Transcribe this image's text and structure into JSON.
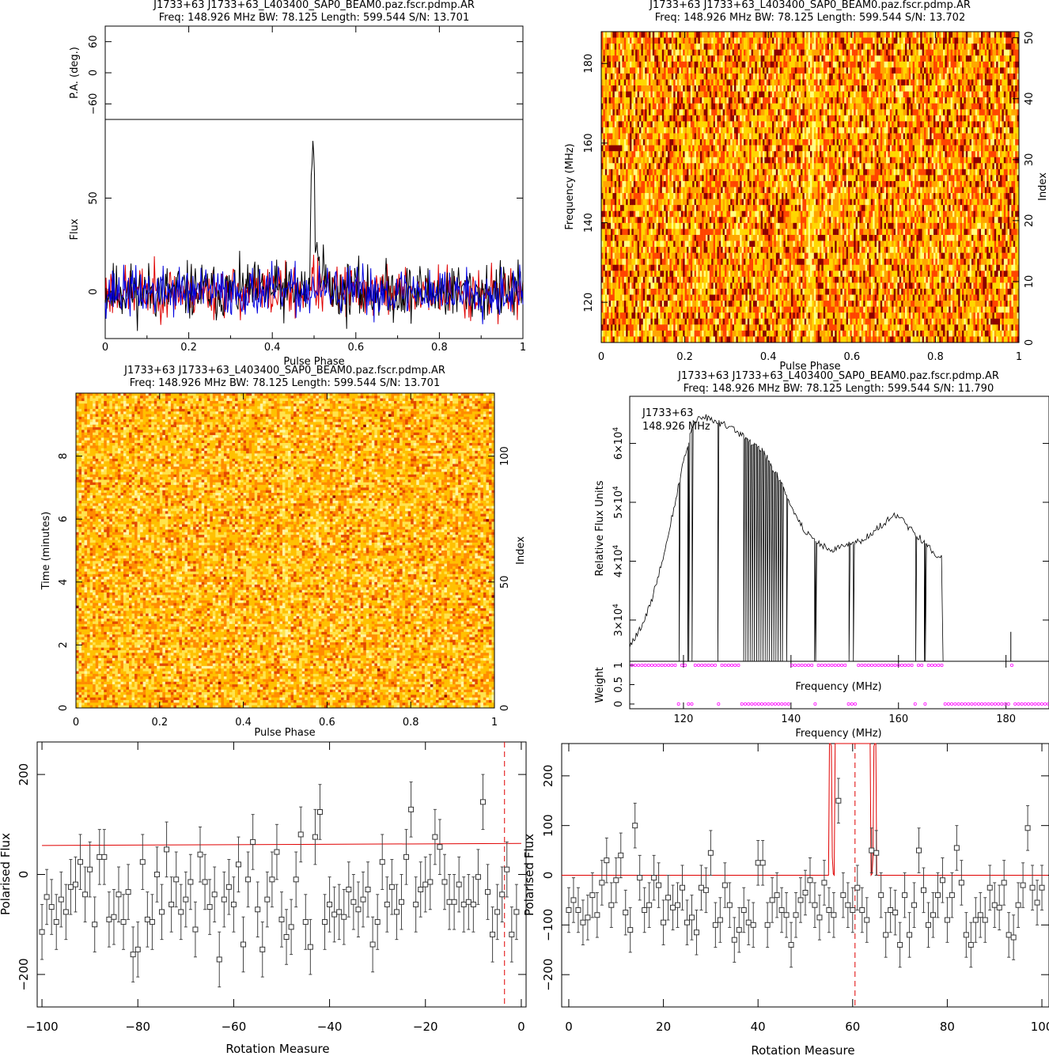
{
  "chart_data": [
    {
      "id": "profile",
      "type": "line",
      "title": "J1733+63 J1733+63_L403400_SAP0_BEAM0.paz.fscr.pdmp.AR",
      "subtitle": "Freq: 148.926 MHz BW: 78.125 Length: 599.544 S/N: 13.701",
      "xlabel": "Pulse Phase",
      "top_panel": {
        "ylabel": "P.A. (deg.)",
        "yticks": [
          "60",
          "0",
          "−60"
        ],
        "ylim": [
          -90,
          90
        ]
      },
      "ylabel": "Flux",
      "yticks": [
        "0",
        "50"
      ],
      "xlim": [
        0,
        1
      ],
      "ylim": [
        -25,
        92
      ],
      "xticks": [
        "0",
        "0.2",
        "0.4",
        "0.6",
        "0.8",
        "1"
      ],
      "series": [
        {
          "color": "#000000",
          "peak": {
            "x": 0.497,
            "y": 90
          }
        },
        {
          "color": "#e00000"
        },
        {
          "color": "#0000e0"
        }
      ]
    },
    {
      "id": "freq-phase",
      "type": "heatmap",
      "title": "J1733+63 J1733+63_L403400_SAP0_BEAM0.paz.fscr.pdmp.AR",
      "subtitle": "Freq: 148.926 MHz BW: 78.125 Length: 599.544 S/N: 13.702",
      "xlabel": "Pulse Phase",
      "ylabel": "Frequency (MHz)",
      "ylabel_right": "Index",
      "xlim": [
        0,
        1
      ],
      "ylim": [
        109.9,
        188.0
      ],
      "xticks": [
        "0",
        "0.2",
        "0.4",
        "0.6",
        "0.8",
        "1"
      ],
      "yticks": [
        "120",
        "140",
        "160",
        "180"
      ],
      "yticks_right": [
        "0",
        "10",
        "20",
        "30",
        "40",
        "50"
      ],
      "colormap": [
        "#8b0000",
        "#ff4500",
        "#ffa500",
        "#ffd700",
        "#ffff80"
      ]
    },
    {
      "id": "time-phase",
      "type": "heatmap",
      "title": "J1733+63 J1733+63_L403400_SAP0_BEAM0.paz.fscr.pdmp.AR",
      "subtitle": "Freq: 148.926 MHz BW: 78.125 Length: 599.544 S/N: 13.701",
      "xlabel": "Pulse Phase",
      "ylabel": "Time (minutes)",
      "ylabel_right": "Index",
      "xlim": [
        0,
        1
      ],
      "ylim": [
        0,
        10
      ],
      "xticks": [
        "0",
        "0.2",
        "0.4",
        "0.6",
        "0.8",
        "1"
      ],
      "yticks": [
        "0",
        "2",
        "4",
        "6",
        "8"
      ],
      "yticks_right": [
        "0",
        "50",
        "100"
      ]
    },
    {
      "id": "bandpass",
      "type": "line",
      "title": "J1733+63 J1733+63_L403400_SAP0_BEAM0.paz.fscr.pdmp.AR",
      "subtitle": "Freq: 148.926 MHz BW: 78.125 Length: 599.544 S/N: 11.790",
      "annotation": [
        "J1733+63",
        "148.926 MHz"
      ],
      "xlabel": "Frequency (MHz)",
      "ylabel": "Relative Flux Units",
      "yticks": [
        "3×10",
        "4×10",
        "5×10",
        "6×10"
      ],
      "ytick_exponent": "4",
      "xlim": [
        110,
        188
      ],
      "ylim": [
        23000,
        68000
      ],
      "xticks": [
        "120",
        "140",
        "160",
        "180"
      ],
      "envelope": [
        [
          110,
          25500
        ],
        [
          112,
          28500
        ],
        [
          114,
          33000
        ],
        [
          116,
          40000
        ],
        [
          118,
          48000
        ],
        [
          120,
          57000
        ],
        [
          122,
          64000
        ],
        [
          124,
          64500
        ],
        [
          126,
          63500
        ],
        [
          128,
          63000
        ],
        [
          130,
          62000
        ],
        [
          132,
          60500
        ],
        [
          134,
          59500
        ],
        [
          136,
          57000
        ],
        [
          138,
          53500
        ],
        [
          140,
          49500
        ],
        [
          142,
          46000
        ],
        [
          144,
          43500
        ],
        [
          146,
          42500
        ],
        [
          148,
          42000
        ],
        [
          150,
          42500
        ],
        [
          152,
          43000
        ],
        [
          154,
          44000
        ],
        [
          156,
          45500
        ],
        [
          158,
          47000
        ],
        [
          160,
          48000
        ],
        [
          162,
          45500
        ],
        [
          164,
          44000
        ],
        [
          166,
          42000
        ],
        [
          168,
          40500
        ]
      ],
      "flagged_channels": [
        119.2,
        120.9,
        121.6,
        126.4,
        131.2,
        131.6,
        132.0,
        132.4,
        132.8,
        133.2,
        133.6,
        134.0,
        134.4,
        134.8,
        135.2,
        135.6,
        136.0,
        136.4,
        136.8,
        137.2,
        137.6,
        138.0,
        138.4,
        139.2,
        144.5,
        150.8,
        151.6,
        163.2,
        164.9
      ],
      "spike": {
        "x": 180.9,
        "y": 28000
      },
      "weight_panel": {
        "ylabel": "Weight",
        "yticks": [
          "0",
          "0.5",
          "1"
        ],
        "inner_label": "Frequency (MHz)",
        "color": "#ff00ff"
      }
    },
    {
      "id": "rm-negative",
      "type": "scatter",
      "xlabel": "Rotation Measure",
      "ylabel": "Polarised Flux",
      "xlim": [
        -101,
        1
      ],
      "ylim": [
        -265,
        265
      ],
      "xticks": [
        "−100",
        "−80",
        "−60",
        "−40",
        "−20",
        "0"
      ],
      "yticks": [
        "−200",
        "0",
        "200"
      ],
      "x": [
        -100.0,
        -99.0,
        -98.0,
        -97.0,
        -96.0,
        -95.0,
        -94.0,
        -93.0,
        -92.0,
        -91.0,
        -90.0,
        -89.0,
        -88.0,
        -87.0,
        -86.0,
        -85.0,
        -84.0,
        -83.0,
        -82.0,
        -81.0,
        -80.0,
        -79.0,
        -78.0,
        -77.0,
        -76.0,
        -75.0,
        -74.0,
        -73.0,
        -72.0,
        -71.0,
        -70.0,
        -69.0,
        -68.0,
        -67.0,
        -66.0,
        -65.0,
        -64.0,
        -63.0,
        -62.0,
        -61.0,
        -60.0,
        -59.0,
        -58.0,
        -57.0,
        -56.0,
        -55.0,
        -54.0,
        -53.0,
        -52.0,
        -51.0,
        -50.0,
        -49.0,
        -48.0,
        -47.0,
        -46.0,
        -45.0,
        -44.0,
        -43.0,
        -42.0,
        -41.0,
        -40.0,
        -39.0,
        -38.0,
        -37.0,
        -36.0,
        -35.0,
        -34.0,
        -33.0,
        -32.0,
        -31.0,
        -30.0,
        -29.0,
        -28.0,
        -27.0,
        -26.0,
        -25.0,
        -24.0,
        -23.0,
        -22.0,
        -21.0,
        -20.0,
        -19.0,
        -18.0,
        -17.0,
        -16.0,
        -15.0,
        -14.0,
        -13.0,
        -12.0,
        -11.0,
        -10.0,
        -9.0,
        -8.0,
        -7.0,
        -6.0,
        -5.0,
        -4.0,
        -3.0,
        -2.0,
        -1.0
      ],
      "y": [
        -115,
        -45,
        -65,
        -95,
        -50,
        -75,
        -25,
        -20,
        25,
        -40,
        10,
        -100,
        35,
        35,
        -90,
        -85,
        -40,
        -95,
        -35,
        -160,
        -150,
        25,
        -90,
        -95,
        0,
        -75,
        50,
        -60,
        -10,
        -75,
        -50,
        -15,
        -110,
        40,
        -15,
        -65,
        -40,
        -170,
        -50,
        -25,
        -60,
        20,
        -140,
        -10,
        65,
        -70,
        -150,
        -50,
        -10,
        45,
        -90,
        -125,
        -105,
        -10,
        80,
        -95,
        -145,
        75,
        125,
        -95,
        -60,
        -80,
        -75,
        -85,
        -30,
        -55,
        -70,
        -50,
        -30,
        -140,
        -95,
        25,
        -60,
        -25,
        -75,
        -55,
        35,
        130,
        -60,
        -30,
        -20,
        -15,
        75,
        55,
        -15,
        -55,
        -55,
        -20,
        -60,
        -55,
        -60,
        -5,
        145,
        -35,
        -120,
        -75,
        -40,
        10,
        -120,
        -75
      ],
      "err": [
        55
      ],
      "fit": {
        "color": "#e00000",
        "x": [
          -100,
          0
        ],
        "y": [
          58,
          62
        ]
      },
      "marker_line": {
        "x": -3.5,
        "color": "#e00000"
      }
    },
    {
      "id": "rm-positive",
      "type": "scatter",
      "xlabel": "Rotation Measure",
      "ylabel": "Polarised Flux",
      "xlim": [
        -1.5,
        101.5
      ],
      "ylim": [
        -265,
        265
      ],
      "xticks": [
        "0",
        "20",
        "40",
        "60",
        "80",
        "100"
      ],
      "yticks": [
        "−200",
        "−100",
        "0",
        "100",
        "200"
      ],
      "x": [
        0.0,
        1.0,
        2.0,
        3.0,
        4.0,
        5.0,
        6.0,
        7.0,
        8.0,
        9.0,
        10.0,
        11.0,
        12.0,
        13.0,
        14.0,
        15.0,
        16.0,
        17.0,
        18.0,
        19.0,
        20.0,
        21.0,
        22.0,
        23.0,
        24.0,
        25.0,
        26.0,
        27.0,
        28.0,
        29.0,
        30.0,
        31.0,
        32.0,
        33.0,
        34.0,
        35.0,
        36.0,
        37.0,
        38.0,
        39.0,
        40.0,
        41.0,
        42.0,
        43.0,
        44.0,
        45.0,
        46.0,
        47.0,
        48.0,
        49.0,
        50.0,
        51.0,
        52.0,
        53.0,
        54.0,
        55.0,
        56.0,
        57.0,
        58.0,
        59.0,
        60.0,
        61.0,
        62.0,
        63.0,
        64.0,
        65.0,
        66.0,
        67.0,
        68.0,
        69.0,
        70.0,
        71.0,
        72.0,
        73.0,
        74.0,
        75.0,
        76.0,
        77.0,
        78.0,
        79.0,
        80.0,
        81.0,
        82.0,
        83.0,
        84.0,
        85.0,
        86.0,
        87.0,
        88.0,
        89.0,
        90.0,
        91.0,
        92.0,
        93.0,
        94.0,
        95.0,
        96.0,
        97.0,
        98.0,
        99.0,
        100.0
      ],
      "y": [
        -70,
        -50,
        -70,
        -95,
        -85,
        -40,
        -80,
        -15,
        30,
        -60,
        -10,
        40,
        -75,
        -110,
        100,
        -5,
        -70,
        -60,
        -5,
        -20,
        -95,
        -45,
        -65,
        -60,
        -25,
        -95,
        -85,
        -115,
        -25,
        -30,
        45,
        -100,
        -90,
        -20,
        -60,
        -130,
        -110,
        -70,
        -95,
        -100,
        25,
        25,
        -100,
        -50,
        -40,
        -70,
        -80,
        -140,
        -80,
        -50,
        -35,
        -10,
        -60,
        -85,
        -15,
        -70,
        -80,
        150,
        -40,
        -60,
        -70,
        -25,
        -70,
        -90,
        50,
        45,
        -40,
        -120,
        -70,
        -75,
        -140,
        -40,
        -120,
        -60,
        50,
        -30,
        -100,
        -80,
        -40,
        -10,
        -90,
        -40,
        55,
        -15,
        -120,
        -140,
        -90,
        -80,
        -90,
        -25,
        -60,
        -65,
        -15,
        -120,
        -125,
        -60,
        -20,
        95,
        -25,
        -55,
        -25
      ],
      "err": [
        45
      ],
      "fit": {
        "color": "#e00000",
        "baseline": 0,
        "peak_center": 60.0,
        "peak_width": 3.8
      },
      "marker_line": {
        "x": 60.5,
        "color": "#e00000"
      }
    }
  ]
}
